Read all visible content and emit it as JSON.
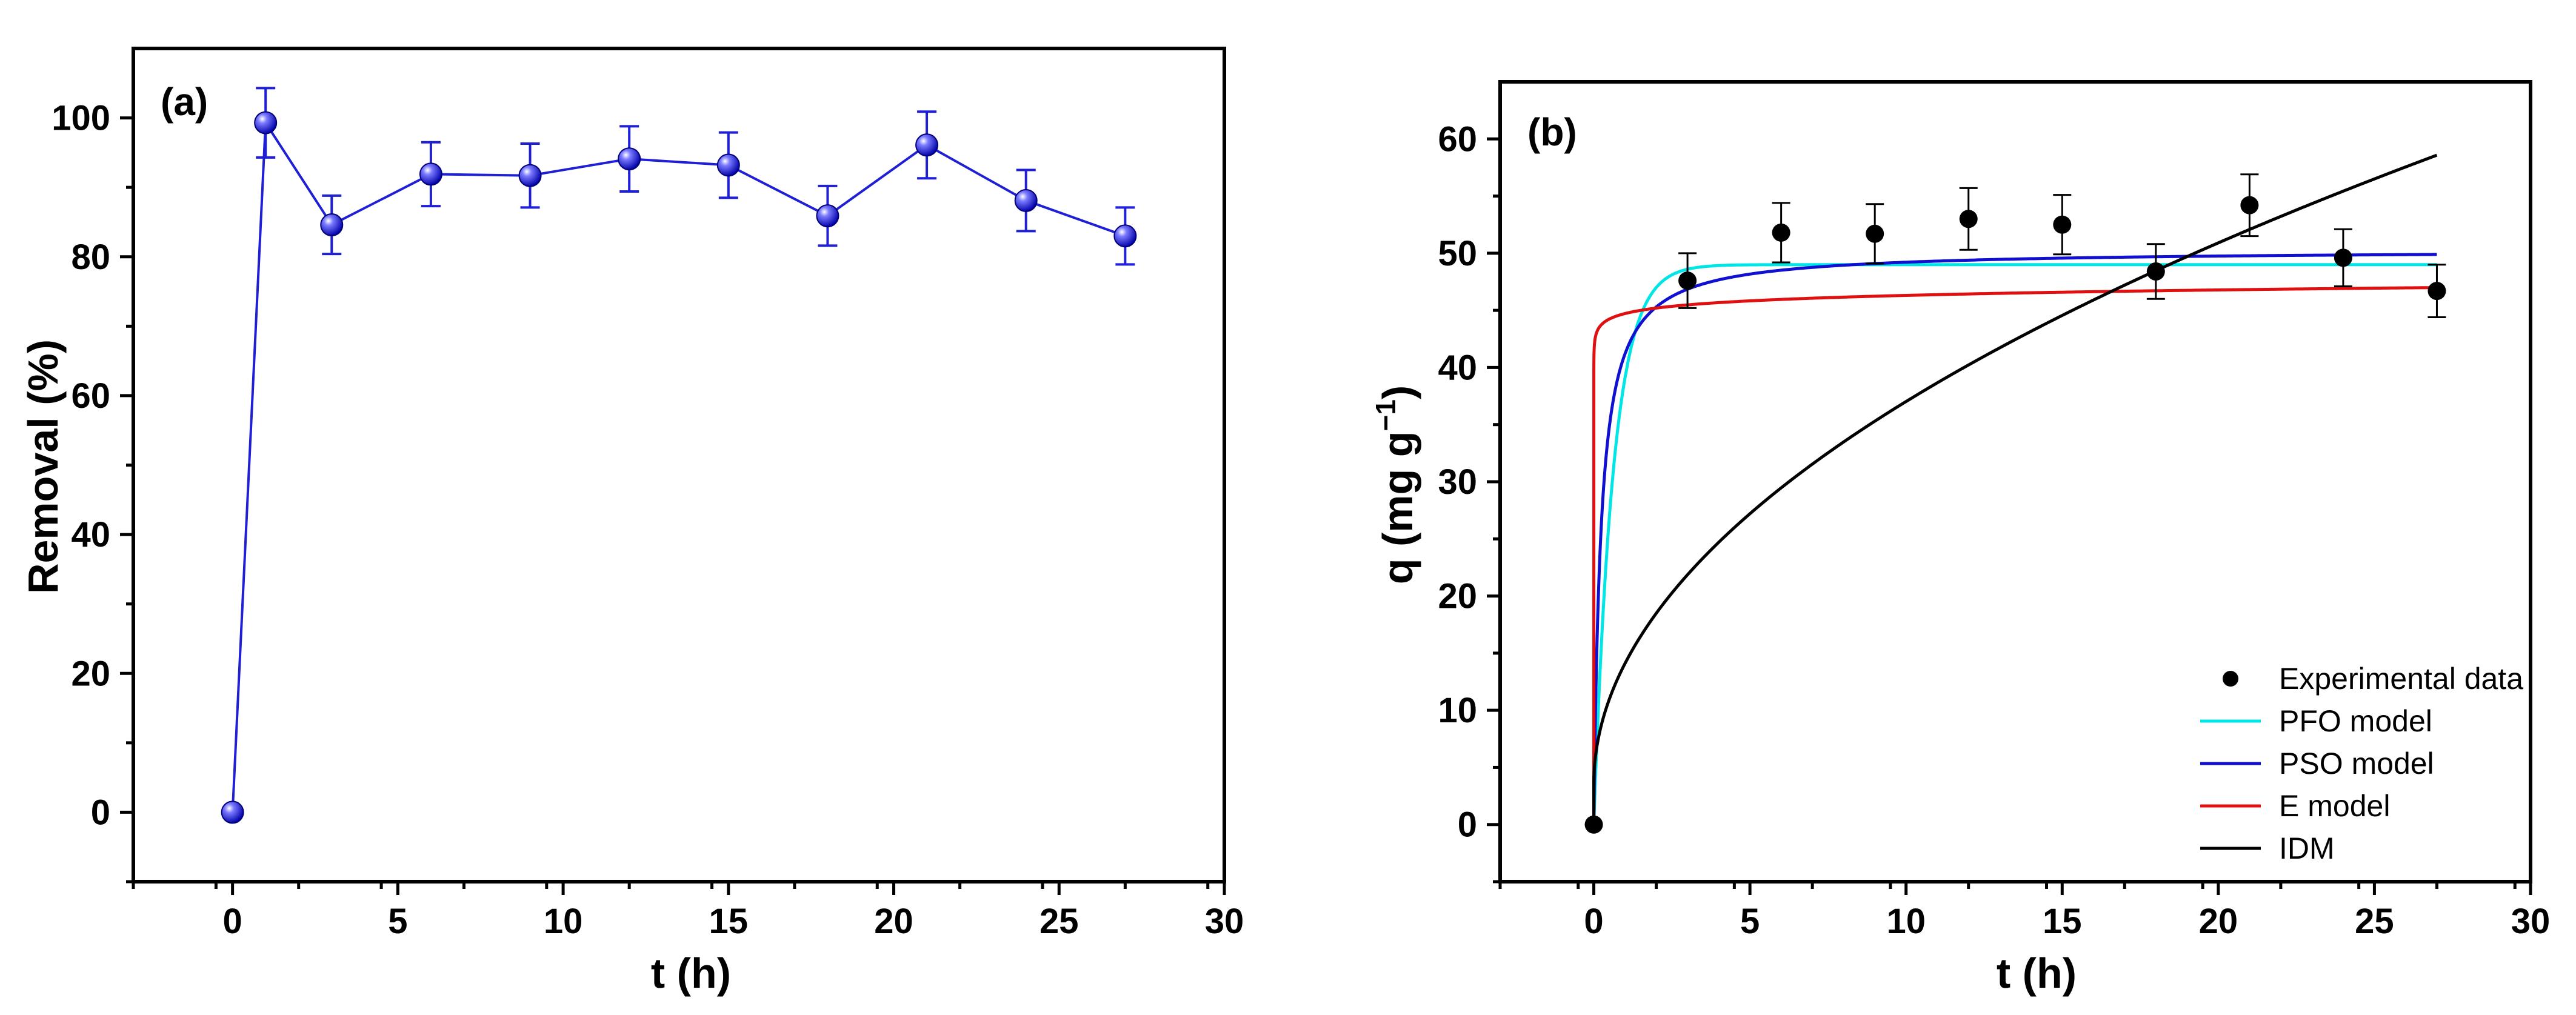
{
  "chart_data": [
    {
      "type": "line",
      "panel_label": "(a)",
      "xlabel": "t (h)",
      "ylabel": "Removal (%)",
      "xlim": [
        -3,
        30
      ],
      "ylim": [
        -10,
        110
      ],
      "xticks": [
        0,
        5,
        10,
        15,
        20,
        25,
        30
      ],
      "xtick_labels": [
        "0",
        "5",
        "10",
        "15",
        "20",
        "25",
        "30"
      ],
      "yticks": [
        0,
        20,
        40,
        60,
        80,
        100
      ],
      "ytick_labels": [
        "0",
        "20",
        "40",
        "60",
        "80",
        "100"
      ],
      "series": [
        {
          "name": "Removal",
          "color": "#1f1fd6",
          "marker": "sphere",
          "x": [
            0,
            1,
            3,
            6,
            9,
            12,
            15,
            18,
            21,
            24,
            27
          ],
          "y": [
            0,
            99.3,
            84.6,
            91.9,
            91.7,
            94.1,
            93.2,
            85.9,
            96.1,
            88.1,
            83.0
          ],
          "err": [
            0,
            5.0,
            4.2,
            4.6,
            4.6,
            4.7,
            4.7,
            4.3,
            4.8,
            4.4,
            4.1
          ]
        }
      ]
    },
    {
      "type": "scatter",
      "panel_label": "(b)",
      "xlabel": "t (h)",
      "ylabel": "q (mg g",
      "ylabel_sup": "−1",
      "ylabel_end": ")",
      "xlim": [
        -3,
        30
      ],
      "ylim": [
        -5,
        65
      ],
      "xticks": [
        0,
        5,
        10,
        15,
        20,
        25,
        30
      ],
      "xtick_labels": [
        "0",
        "5",
        "10",
        "15",
        "20",
        "25",
        "30"
      ],
      "yticks": [
        0,
        10,
        20,
        30,
        40,
        50,
        60
      ],
      "ytick_labels": [
        "0",
        "10",
        "20",
        "30",
        "40",
        "50",
        "60"
      ],
      "experimental": {
        "name": "Experimental data",
        "color": "#000000",
        "x": [
          0,
          3,
          6,
          9,
          12,
          15,
          18,
          21,
          24,
          27
        ],
        "y": [
          0,
          47.6,
          51.8,
          51.7,
          53.0,
          52.5,
          48.4,
          54.2,
          49.6,
          46.7
        ],
        "err": [
          0,
          2.4,
          2.6,
          2.6,
          2.7,
          2.6,
          2.4,
          2.7,
          2.5,
          2.3
        ]
      },
      "models": [
        {
          "name": "PFO model",
          "color": "#00e5e5",
          "kind": "pfo",
          "qe": 49.0,
          "k": 1.6
        },
        {
          "name": "PSO model",
          "color": "#1010d0",
          "kind": "pso",
          "qe": 50.3,
          "k": 0.09
        },
        {
          "name": "E model",
          "color": "#e01010",
          "kind": "elovich",
          "a": 1e+28,
          "b": 1.45
        },
        {
          "name": "IDM",
          "color": "#000000",
          "kind": "idm",
          "k": 10.6,
          "c": 3.5
        }
      ],
      "legend_position": "lower-right"
    }
  ]
}
